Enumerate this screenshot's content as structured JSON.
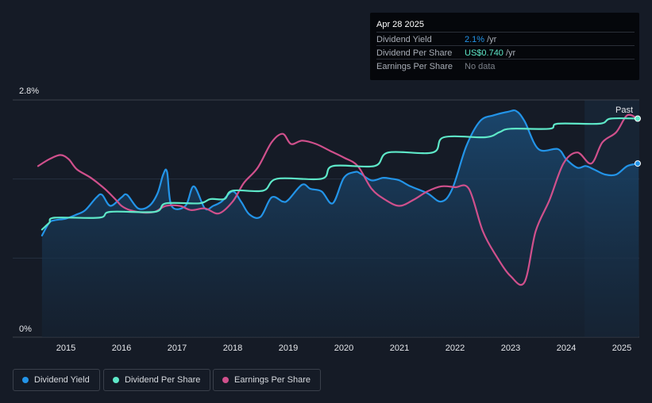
{
  "tooltip": {
    "date": "Apr 28 2025",
    "rows": [
      {
        "label": "Dividend Yield",
        "value": "2.1%",
        "unit": "/yr",
        "color": "#2394e8"
      },
      {
        "label": "Dividend Per Share",
        "value": "US$0.740",
        "unit": "/yr",
        "color": "#5ee8c8"
      },
      {
        "label": "Earnings Per Share",
        "value": "No data",
        "unit": "",
        "color": "#7b8089"
      }
    ]
  },
  "legend": [
    {
      "label": "Dividend Yield",
      "color": "#2394e8"
    },
    {
      "label": "Dividend Per Share",
      "color": "#5ee8c8"
    },
    {
      "label": "Earnings Per Share",
      "color": "#d0508c"
    }
  ],
  "chart_data": {
    "type": "line",
    "y_top_label": "2.8%",
    "y_bottom_label": "0%",
    "ylim": [
      0,
      2.8
    ],
    "xlim": [
      2014.2,
      2025.32
    ],
    "x_ticks": [
      "2015",
      "2016",
      "2017",
      "2018",
      "2019",
      "2020",
      "2021",
      "2022",
      "2023",
      "2024",
      "2025"
    ],
    "past_label": "Past",
    "past_region_start": 2024.33,
    "series": [
      {
        "name": "Dividend Yield",
        "color": "#2394e8",
        "filled": true,
        "points": [
          [
            2014.57,
            1.2
          ],
          [
            2014.7,
            1.35
          ],
          [
            2014.8,
            1.38
          ],
          [
            2015.0,
            1.4
          ],
          [
            2015.2,
            1.45
          ],
          [
            2015.35,
            1.5
          ],
          [
            2015.55,
            1.65
          ],
          [
            2015.65,
            1.68
          ],
          [
            2015.8,
            1.55
          ],
          [
            2016.0,
            1.65
          ],
          [
            2016.1,
            1.68
          ],
          [
            2016.3,
            1.52
          ],
          [
            2016.5,
            1.55
          ],
          [
            2016.65,
            1.7
          ],
          [
            2016.75,
            1.92
          ],
          [
            2016.82,
            1.95
          ],
          [
            2016.9,
            1.55
          ],
          [
            2017.15,
            1.55
          ],
          [
            2017.3,
            1.78
          ],
          [
            2017.5,
            1.52
          ],
          [
            2017.65,
            1.55
          ],
          [
            2017.8,
            1.6
          ],
          [
            2018.0,
            1.72
          ],
          [
            2018.15,
            1.6
          ],
          [
            2018.3,
            1.45
          ],
          [
            2018.5,
            1.42
          ],
          [
            2018.7,
            1.65
          ],
          [
            2018.9,
            1.6
          ],
          [
            2019.0,
            1.62
          ],
          [
            2019.25,
            1.8
          ],
          [
            2019.4,
            1.75
          ],
          [
            2019.6,
            1.72
          ],
          [
            2019.8,
            1.58
          ],
          [
            2020.0,
            1.88
          ],
          [
            2020.2,
            1.95
          ],
          [
            2020.3,
            1.93
          ],
          [
            2020.5,
            1.85
          ],
          [
            2020.7,
            1.88
          ],
          [
            2020.85,
            1.87
          ],
          [
            2021.0,
            1.85
          ],
          [
            2021.2,
            1.78
          ],
          [
            2021.5,
            1.7
          ],
          [
            2021.75,
            1.6
          ],
          [
            2021.95,
            1.75
          ],
          [
            2022.2,
            2.25
          ],
          [
            2022.45,
            2.55
          ],
          [
            2022.7,
            2.62
          ],
          [
            2022.95,
            2.66
          ],
          [
            2023.1,
            2.67
          ],
          [
            2023.25,
            2.55
          ],
          [
            2023.5,
            2.22
          ],
          [
            2023.85,
            2.22
          ],
          [
            2024.0,
            2.1
          ],
          [
            2024.2,
            2.0
          ],
          [
            2024.35,
            2.02
          ],
          [
            2024.5,
            1.98
          ],
          [
            2024.7,
            1.92
          ],
          [
            2024.9,
            1.92
          ],
          [
            2025.1,
            2.02
          ],
          [
            2025.3,
            2.05
          ]
        ]
      },
      {
        "name": "Dividend Per Share",
        "color": "#5ee8c8",
        "filled": false,
        "points": [
          [
            2014.57,
            1.27
          ],
          [
            2014.7,
            1.35
          ],
          [
            2014.8,
            1.41
          ],
          [
            2015.6,
            1.41
          ],
          [
            2015.8,
            1.48
          ],
          [
            2016.6,
            1.48
          ],
          [
            2016.8,
            1.58
          ],
          [
            2017.4,
            1.58
          ],
          [
            2017.6,
            1.63
          ],
          [
            2017.85,
            1.63
          ],
          [
            2018.0,
            1.73
          ],
          [
            2018.55,
            1.73
          ],
          [
            2018.8,
            1.87
          ],
          [
            2019.6,
            1.87
          ],
          [
            2019.8,
            2.02
          ],
          [
            2020.55,
            2.02
          ],
          [
            2020.8,
            2.18
          ],
          [
            2021.6,
            2.18
          ],
          [
            2021.8,
            2.36
          ],
          [
            2022.55,
            2.36
          ],
          [
            2022.8,
            2.42
          ],
          [
            2023.0,
            2.46
          ],
          [
            2023.7,
            2.46
          ],
          [
            2023.85,
            2.52
          ],
          [
            2024.6,
            2.52
          ],
          [
            2024.8,
            2.58
          ],
          [
            2025.3,
            2.58
          ]
        ]
      },
      {
        "name": "Earnings Per Share",
        "color": "#d0508c",
        "filled": false,
        "points": [
          [
            2014.5,
            2.02
          ],
          [
            2014.7,
            2.1
          ],
          [
            2014.9,
            2.15
          ],
          [
            2015.05,
            2.1
          ],
          [
            2015.2,
            1.98
          ],
          [
            2015.45,
            1.88
          ],
          [
            2015.7,
            1.75
          ],
          [
            2015.9,
            1.62
          ],
          [
            2016.0,
            1.55
          ],
          [
            2016.15,
            1.5
          ],
          [
            2016.4,
            1.47
          ],
          [
            2016.6,
            1.48
          ],
          [
            2016.8,
            1.55
          ],
          [
            2017.05,
            1.55
          ],
          [
            2017.25,
            1.5
          ],
          [
            2017.5,
            1.52
          ],
          [
            2017.75,
            1.46
          ],
          [
            2018.0,
            1.6
          ],
          [
            2018.2,
            1.82
          ],
          [
            2018.45,
            2.0
          ],
          [
            2018.7,
            2.3
          ],
          [
            2018.9,
            2.4
          ],
          [
            2019.05,
            2.28
          ],
          [
            2019.25,
            2.32
          ],
          [
            2019.5,
            2.28
          ],
          [
            2019.75,
            2.2
          ],
          [
            2020.0,
            2.12
          ],
          [
            2020.25,
            2.02
          ],
          [
            2020.5,
            1.75
          ],
          [
            2020.75,
            1.62
          ],
          [
            2021.0,
            1.55
          ],
          [
            2021.25,
            1.62
          ],
          [
            2021.5,
            1.72
          ],
          [
            2021.75,
            1.78
          ],
          [
            2022.0,
            1.77
          ],
          [
            2022.25,
            1.75
          ],
          [
            2022.5,
            1.25
          ],
          [
            2022.75,
            0.95
          ],
          [
            2023.0,
            0.72
          ],
          [
            2023.25,
            0.65
          ],
          [
            2023.45,
            1.25
          ],
          [
            2023.7,
            1.62
          ],
          [
            2023.95,
            2.05
          ],
          [
            2024.2,
            2.18
          ],
          [
            2024.45,
            2.05
          ],
          [
            2024.65,
            2.3
          ],
          [
            2024.9,
            2.42
          ],
          [
            2025.1,
            2.62
          ],
          [
            2025.3,
            2.57
          ]
        ]
      }
    ]
  }
}
